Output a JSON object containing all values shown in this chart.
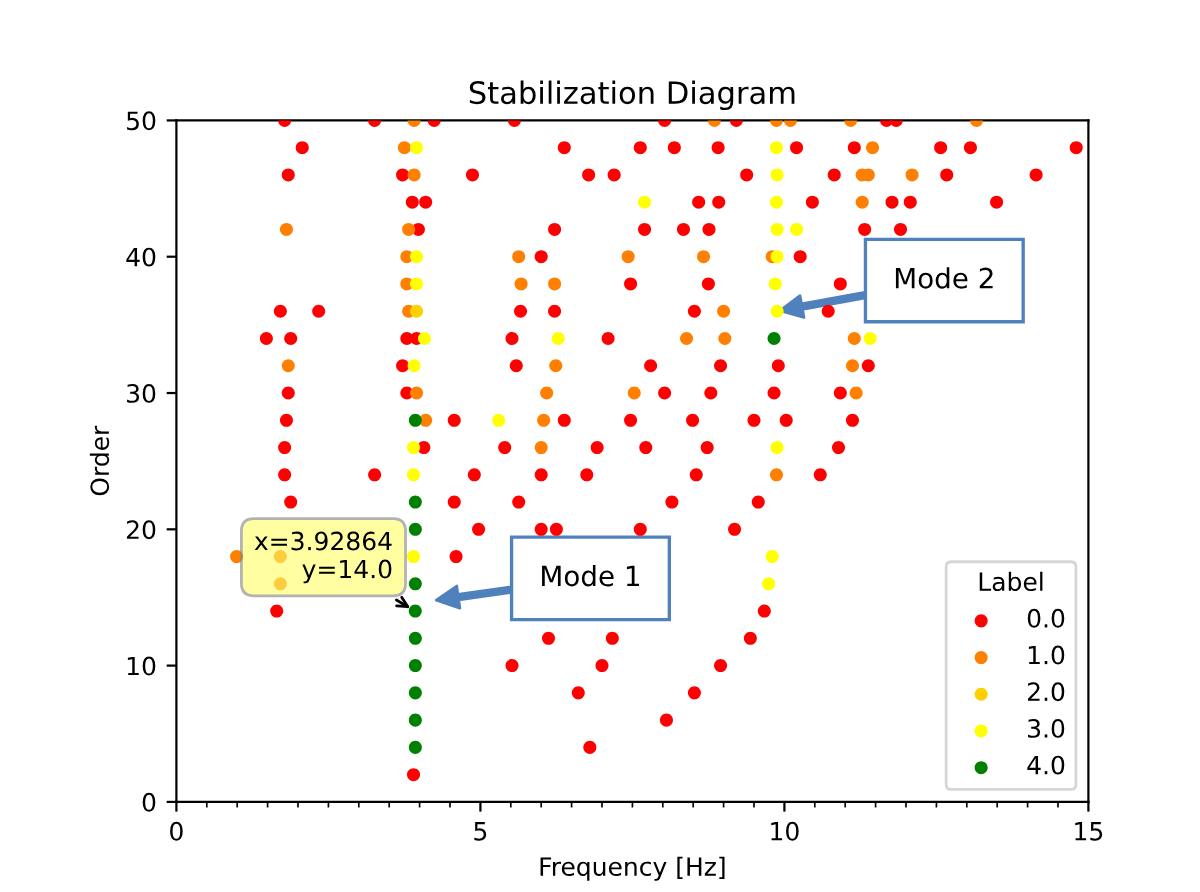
{
  "chart_data": {
    "type": "scatter",
    "title": "Stabilization Diagram",
    "xlabel": "Frequency [Hz]",
    "ylabel": "Order",
    "legend_title": "Label",
    "legend": "bottom right",
    "marker": "circle",
    "grid": false,
    "xlim": [
      0,
      15
    ],
    "ylim": [
      0,
      50
    ],
    "xticks": [
      0,
      {
        "value": 0.5,
        "label": null
      },
      {
        "value": 1,
        "label": null
      },
      {
        "value": 1.5,
        "label": null
      },
      {
        "value": 2,
        "label": null
      },
      {
        "value": 2.5,
        "label": null
      },
      {
        "value": 3,
        "label": null
      },
      {
        "value": 3.5,
        "label": null
      },
      {
        "value": 4,
        "label": null
      },
      {
        "value": 4.5,
        "label": null
      },
      5,
      {
        "value": 5.5,
        "label": null
      },
      {
        "value": 6,
        "label": null
      },
      {
        "value": 6.5,
        "label": null
      },
      {
        "value": 7,
        "label": null
      },
      {
        "value": 7.5,
        "label": null
      },
      {
        "value": 8,
        "label": null
      },
      {
        "value": 8.5,
        "label": null
      },
      {
        "value": 9,
        "label": null
      },
      {
        "value": 9.5,
        "label": null
      },
      10,
      {
        "value": 10.5,
        "label": null
      },
      {
        "value": 11,
        "label": null
      },
      {
        "value": 11.5,
        "label": null
      },
      {
        "value": 12,
        "label": null
      },
      {
        "value": 12.5,
        "label": null
      },
      {
        "value": 13,
        "label": null
      },
      {
        "value": 13.5,
        "label": null
      },
      {
        "value": 14,
        "label": null
      },
      {
        "value": 14.5,
        "label": null
      },
      15
    ],
    "yticks": [
      0,
      10,
      20,
      30,
      40,
      50
    ],
    "annotations": [
      {
        "text": "x=3.92864\ny=14.0",
        "x": 3.92864,
        "y": 14.0
      },
      "Mode 1",
      "Mode 2"
    ],
    "series": [
      {
        "name": "0.0",
        "color": "#ff0000",
        "x": [
          1.78,
          3.26,
          4.24,
          5.56,
          8.03,
          9.21,
          11.68,
          11.84,
          2.07,
          6.38,
          7.63,
          8.19,
          8.91,
          10.2,
          11.15,
          12.57,
          13.06,
          14.8,
          1.84,
          3.72,
          4.87,
          6.78,
          7.2,
          9.38,
          10.82,
          12.67,
          14.14,
          3.88,
          4.1,
          8.59,
          8.92,
          10.46,
          11.77,
          12.07,
          13.49,
          3.98,
          6.22,
          7.7,
          8.34,
          8.76,
          11.32,
          11.91,
          6.0,
          10.26,
          7.47,
          8.75,
          10.92,
          1.71,
          2.34,
          5.66,
          6.22,
          8.52,
          10.72,
          1.48,
          1.88,
          3.79,
          3.95,
          5.52,
          7.1,
          3.72,
          5.59,
          7.8,
          8.95,
          9.9,
          11.38,
          1.84,
          3.79,
          8.03,
          8.79,
          9.83,
          10.92,
          1.81,
          4.57,
          6.38,
          7.47,
          8.49,
          9.5,
          10.03,
          11.12,
          1.78,
          4.07,
          5.4,
          6.92,
          7.72,
          8.73,
          10.89,
          1.78,
          3.26,
          4.9,
          6.0,
          6.75,
          8.55,
          10.59,
          1.88,
          4.57,
          5.63,
          8.15,
          9.57,
          4.97,
          6.0,
          6.25,
          7.63,
          9.18,
          4.6,
          1.65,
          9.67,
          6.12,
          7.17,
          9.44,
          5.52,
          7.0,
          8.95,
          6.61,
          8.52,
          8.06,
          6.8,
          3.9
        ],
        "values": [
          50,
          50,
          50,
          50,
          50,
          50,
          50,
          50,
          48,
          48,
          48,
          48,
          48,
          48,
          48,
          48,
          48,
          48,
          46,
          46,
          46,
          46,
          46,
          46,
          46,
          46,
          46,
          44,
          44,
          44,
          44,
          44,
          44,
          44,
          44,
          42,
          42,
          42,
          42,
          42,
          42,
          42,
          40,
          40,
          38,
          38,
          38,
          36,
          36,
          36,
          36,
          36,
          36,
          34,
          34,
          34,
          34,
          34,
          34,
          32,
          32,
          32,
          32,
          32,
          32,
          30,
          30,
          30,
          30,
          30,
          30,
          28,
          28,
          28,
          28,
          28,
          28,
          28,
          28,
          26,
          26,
          26,
          26,
          26,
          26,
          26,
          24,
          24,
          24,
          24,
          24,
          24,
          24,
          22,
          22,
          22,
          22,
          22,
          20,
          20,
          20,
          20,
          20,
          18,
          14,
          14,
          12,
          12,
          12,
          10,
          10,
          10,
          8,
          8,
          6,
          4,
          2
        ]
      },
      {
        "name": "1.0",
        "color": "#ff8000",
        "x": [
          3.91,
          8.85,
          9.87,
          10.1,
          11.09,
          13.16,
          3.75,
          11.45,
          3.91,
          11.28,
          11.38,
          12.1,
          11.28,
          1.81,
          3.82,
          3.79,
          5.63,
          7.43,
          8.67,
          9.8,
          3.79,
          5.67,
          6.22,
          3.82,
          9.0,
          8.39,
          9.02,
          11.15,
          1.84,
          6.24,
          11.12,
          3.95,
          6.09,
          7.53,
          11.18,
          4.1,
          6.04,
          6.0,
          9.87,
          0.99,
          1.71,
          1.71
        ],
        "values": [
          50,
          50,
          50,
          50,
          50,
          50,
          48,
          48,
          46,
          46,
          46,
          46,
          44,
          42,
          42,
          40,
          40,
          40,
          40,
          40,
          38,
          38,
          38,
          36,
          36,
          34,
          34,
          34,
          32,
          32,
          32,
          30,
          30,
          30,
          30,
          28,
          28,
          26,
          24,
          18,
          18,
          16
        ]
      },
      {
        "name": "2.0",
        "color": "#ffd000",
        "x": [
          3.95
        ],
        "values": [
          36
        ]
      },
      {
        "name": "3.0",
        "color": "#ffff00",
        "x": [
          3.95,
          9.87,
          9.88,
          7.7,
          9.87,
          9.88,
          10.2,
          3.95,
          9.88,
          3.95,
          9.85,
          9.88,
          4.08,
          6.28,
          11.41,
          3.91,
          5.3,
          3.9,
          9.88,
          3.9,
          3.9,
          9.8,
          9.74
        ],
        "values": [
          48,
          48,
          46,
          44,
          44,
          42,
          42,
          40,
          40,
          38,
          38,
          36,
          34,
          34,
          34,
          32,
          28,
          26,
          26,
          24,
          18,
          18,
          16
        ]
      },
      {
        "name": "4.0",
        "color": "#008000",
        "x": [
          9.83,
          3.93,
          3.93,
          3.93,
          3.93,
          3.92864,
          3.93,
          3.93,
          3.93,
          3.93,
          3.93
        ],
        "values": [
          34,
          28,
          22,
          20,
          16,
          14,
          12,
          10,
          8,
          6,
          4
        ]
      }
    ]
  }
}
